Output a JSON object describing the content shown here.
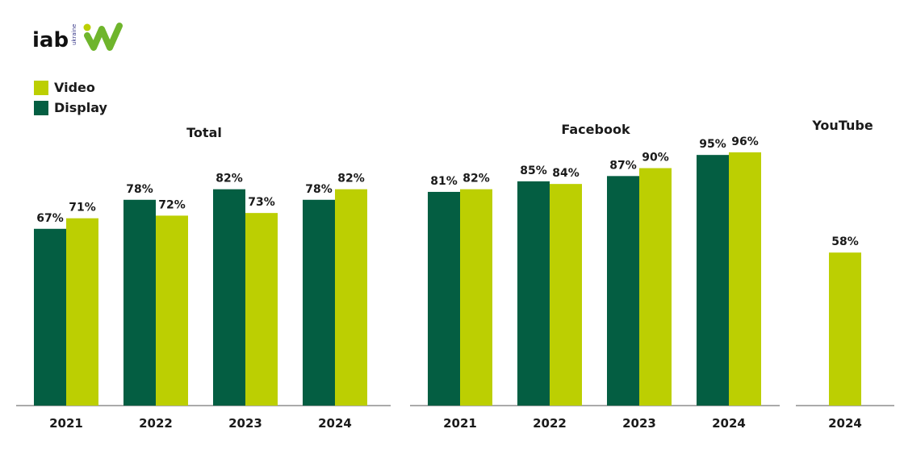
{
  "logo": {
    "wordmark": "iab",
    "subtext": "ukraine"
  },
  "legend": [
    {
      "label": "Video",
      "color": "#bccf02"
    },
    {
      "label": "Display",
      "color": "#045e42"
    }
  ],
  "chart_data": [
    {
      "type": "bar",
      "title": "Total",
      "categories": [
        "2021",
        "2022",
        "2023",
        "2024"
      ],
      "series": [
        {
          "name": "Display",
          "color": "#045e42",
          "values": [
            67,
            78,
            82,
            78
          ],
          "labels": [
            "67%",
            "78%",
            "82%",
            "78%"
          ]
        },
        {
          "name": "Video",
          "color": "#bccf02",
          "values": [
            71,
            72,
            73,
            82
          ],
          "labels": [
            "71%",
            "72%",
            "73%",
            "82%"
          ]
        }
      ],
      "ylim": [
        0,
        100
      ]
    },
    {
      "type": "bar",
      "title": "Facebook",
      "categories": [
        "2021",
        "2022",
        "2023",
        "2024"
      ],
      "series": [
        {
          "name": "Display",
          "color": "#045e42",
          "values": [
            81,
            85,
            87,
            95
          ],
          "labels": [
            "81%",
            "85%",
            "87%",
            "95%"
          ]
        },
        {
          "name": "Video",
          "color": "#bccf02",
          "values": [
            82,
            84,
            90,
            96
          ],
          "labels": [
            "82%",
            "84%",
            "90%",
            "96%"
          ]
        }
      ],
      "ylim": [
        0,
        100
      ]
    },
    {
      "type": "bar",
      "title": "YouTube",
      "categories": [
        "2024"
      ],
      "series": [
        {
          "name": "Video",
          "color": "#bccf02",
          "values": [
            58
          ],
          "labels": [
            "58%"
          ]
        }
      ],
      "ylim": [
        0,
        100
      ]
    }
  ]
}
